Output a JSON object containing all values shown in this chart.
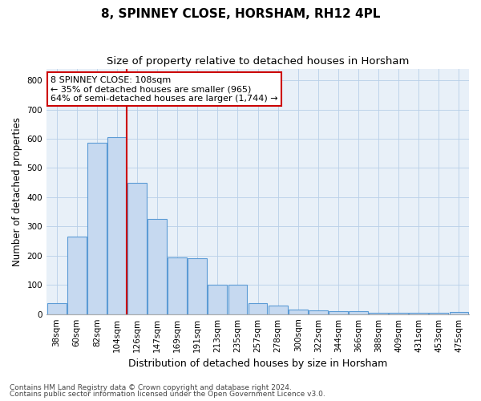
{
  "title": "8, SPINNEY CLOSE, HORSHAM, RH12 4PL",
  "subtitle": "Size of property relative to detached houses in Horsham",
  "xlabel": "Distribution of detached houses by size in Horsham",
  "ylabel": "Number of detached properties",
  "categories": [
    "38sqm",
    "60sqm",
    "82sqm",
    "104sqm",
    "126sqm",
    "147sqm",
    "169sqm",
    "191sqm",
    "213sqm",
    "235sqm",
    "257sqm",
    "278sqm",
    "300sqm",
    "322sqm",
    "344sqm",
    "366sqm",
    "388sqm",
    "409sqm",
    "431sqm",
    "453sqm",
    "475sqm"
  ],
  "values": [
    37,
    265,
    585,
    605,
    450,
    325,
    195,
    190,
    100,
    100,
    38,
    30,
    15,
    13,
    10,
    9,
    5,
    5,
    5,
    5,
    8
  ],
  "bar_color": "#c6d9f0",
  "bar_edge_color": "#5b9bd5",
  "vline_color": "#cc0000",
  "vline_x": 3.5,
  "annotation_text": "8 SPINNEY CLOSE: 108sqm\n← 35% of detached houses are smaller (965)\n64% of semi-detached houses are larger (1,744) →",
  "annotation_box_color": "#ffffff",
  "annotation_box_edge": "#cc0000",
  "ylim": [
    0,
    840
  ],
  "yticks": [
    0,
    100,
    200,
    300,
    400,
    500,
    600,
    700,
    800
  ],
  "grid_color": "#b8cfe8",
  "bg_color": "#e8f0f8",
  "footer1": "Contains HM Land Registry data © Crown copyright and database right 2024.",
  "footer2": "Contains public sector information licensed under the Open Government Licence v3.0.",
  "title_fontsize": 11,
  "subtitle_fontsize": 9.5,
  "tick_fontsize": 7.5,
  "ylabel_fontsize": 8.5,
  "xlabel_fontsize": 9,
  "annotation_fontsize": 8,
  "footer_fontsize": 6.5
}
